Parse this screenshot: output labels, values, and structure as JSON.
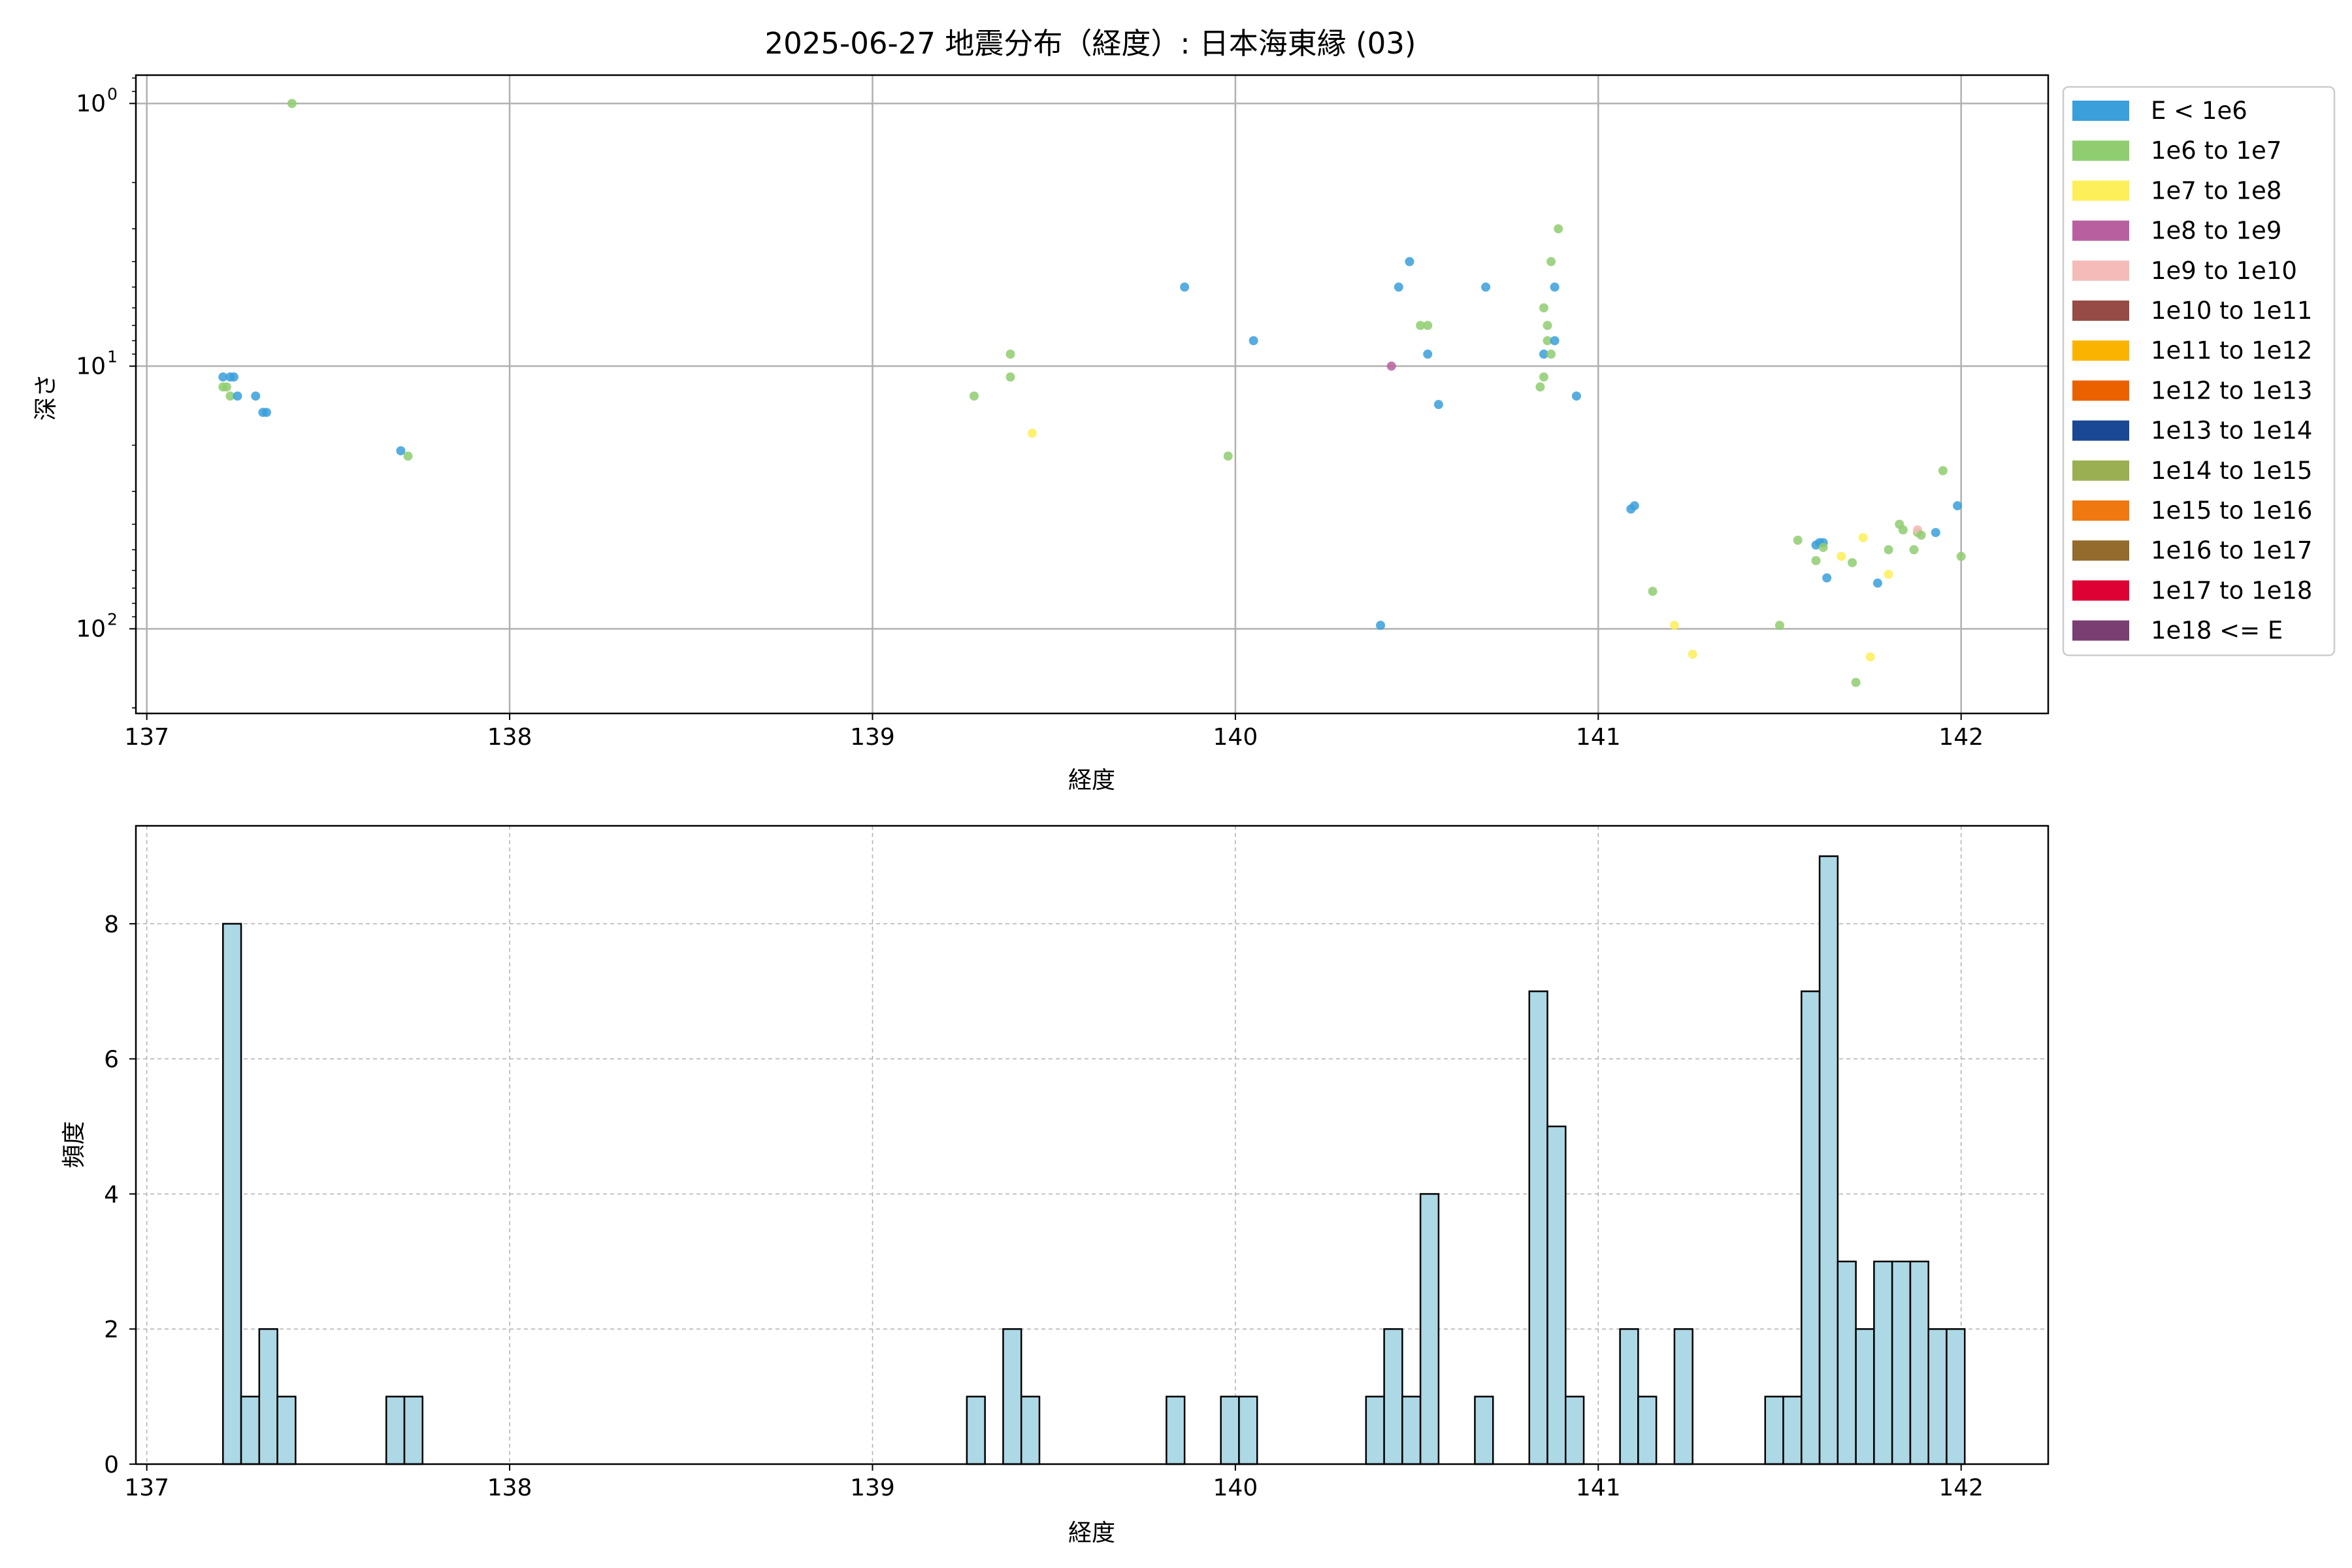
{
  "figure": {
    "title": "2025-06-27 地震分布（経度）: 日本海東縁 (03)"
  },
  "colors": {
    "grid": "#b0b0b0",
    "hist_fill": "#add8e6",
    "hist_edge": "#000000"
  },
  "chart_data": [
    {
      "type": "scatter",
      "title": "2025-06-27 地震分布（経度）: 日本海東縁 (03)",
      "xlabel": "経度",
      "ylabel": "深さ",
      "xlim": [
        136.97,
        142.24
      ],
      "ylim": [
        0.78,
        210
      ],
      "y_scale": "log",
      "y_inverted": true,
      "grid": true,
      "x_ticks": [
        137,
        138,
        139,
        140,
        141,
        142
      ],
      "y_ticks": [
        {
          "value": 1,
          "base": "10",
          "exp": "0"
        },
        {
          "value": 10,
          "base": "10",
          "exp": "1"
        },
        {
          "value": 100,
          "base": "10",
          "exp": "2"
        }
      ],
      "legend_position": "outside-right",
      "legend": [
        {
          "label": "E < 1e6",
          "color": "#3a9fdb"
        },
        {
          "label": "1e6 to 1e7",
          "color": "#8fcd70"
        },
        {
          "label": "1e7 to 1e8",
          "color": "#fdef59"
        },
        {
          "label": "1e8 to 1e9",
          "color": "#b8609f"
        },
        {
          "label": "1e9 to 1e10",
          "color": "#f4bbb8"
        },
        {
          "label": "1e10 to 1e11",
          "color": "#964b47"
        },
        {
          "label": "1e11 to 1e12",
          "color": "#f8b400"
        },
        {
          "label": "1e12 to 1e13",
          "color": "#ea6100"
        },
        {
          "label": "1e13 to 1e14",
          "color": "#1a4894"
        },
        {
          "label": "1e14 to 1e15",
          "color": "#9aaf51"
        },
        {
          "label": "1e15 to 1e16",
          "color": "#ef7910"
        },
        {
          "label": "1e16 to 1e17",
          "color": "#956a2d"
        },
        {
          "label": "1e17 to 1e18",
          "color": "#dd0134"
        },
        {
          "label": "1e18 <= E",
          "color": "#7b3e72"
        }
      ],
      "points": [
        {
          "x": 137.21,
          "y": 11,
          "c": 0
        },
        {
          "x": 137.23,
          "y": 11,
          "c": 0
        },
        {
          "x": 137.24,
          "y": 11,
          "c": 0
        },
        {
          "x": 137.21,
          "y": 12,
          "c": 1
        },
        {
          "x": 137.22,
          "y": 12,
          "c": 1
        },
        {
          "x": 137.23,
          "y": 13,
          "c": 1
        },
        {
          "x": 137.25,
          "y": 13,
          "c": 0
        },
        {
          "x": 137.3,
          "y": 13,
          "c": 0
        },
        {
          "x": 137.32,
          "y": 15,
          "c": 0
        },
        {
          "x": 137.33,
          "y": 15,
          "c": 0
        },
        {
          "x": 137.4,
          "y": 1,
          "c": 1
        },
        {
          "x": 137.7,
          "y": 21,
          "c": 0
        },
        {
          "x": 137.72,
          "y": 22,
          "c": 1
        },
        {
          "x": 139.28,
          "y": 13,
          "c": 1
        },
        {
          "x": 139.38,
          "y": 9,
          "c": 1
        },
        {
          "x": 139.38,
          "y": 11,
          "c": 1
        },
        {
          "x": 139.44,
          "y": 18,
          "c": 2
        },
        {
          "x": 139.86,
          "y": 5,
          "c": 0
        },
        {
          "x": 139.98,
          "y": 22,
          "c": 1
        },
        {
          "x": 140.05,
          "y": 8,
          "c": 0
        },
        {
          "x": 140.4,
          "y": 97,
          "c": 0
        },
        {
          "x": 140.43,
          "y": 10,
          "c": 3
        },
        {
          "x": 140.45,
          "y": 5,
          "c": 0
        },
        {
          "x": 140.48,
          "y": 4,
          "c": 0
        },
        {
          "x": 140.51,
          "y": 7,
          "c": 1
        },
        {
          "x": 140.53,
          "y": 7,
          "c": 1
        },
        {
          "x": 140.53,
          "y": 9,
          "c": 0
        },
        {
          "x": 140.56,
          "y": 14,
          "c": 0
        },
        {
          "x": 140.69,
          "y": 5,
          "c": 0
        },
        {
          "x": 140.84,
          "y": 12,
          "c": 1
        },
        {
          "x": 140.85,
          "y": 9,
          "c": 0
        },
        {
          "x": 140.85,
          "y": 11,
          "c": 1
        },
        {
          "x": 140.85,
          "y": 6,
          "c": 1
        },
        {
          "x": 140.86,
          "y": 7,
          "c": 1
        },
        {
          "x": 140.86,
          "y": 8,
          "c": 1
        },
        {
          "x": 140.87,
          "y": 9,
          "c": 1
        },
        {
          "x": 140.87,
          "y": 4,
          "c": 1
        },
        {
          "x": 140.88,
          "y": 5,
          "c": 0
        },
        {
          "x": 140.88,
          "y": 8,
          "c": 0
        },
        {
          "x": 140.89,
          "y": 3,
          "c": 1
        },
        {
          "x": 140.94,
          "y": 13,
          "c": 0
        },
        {
          "x": 141.09,
          "y": 35,
          "c": 0
        },
        {
          "x": 141.1,
          "y": 34,
          "c": 0
        },
        {
          "x": 141.15,
          "y": 72,
          "c": 1
        },
        {
          "x": 141.21,
          "y": 97,
          "c": 2
        },
        {
          "x": 141.26,
          "y": 125,
          "c": 2
        },
        {
          "x": 141.5,
          "y": 97,
          "c": 1
        },
        {
          "x": 141.55,
          "y": 46,
          "c": 1
        },
        {
          "x": 141.6,
          "y": 48,
          "c": 0
        },
        {
          "x": 141.6,
          "y": 55,
          "c": 1
        },
        {
          "x": 141.61,
          "y": 47,
          "c": 0
        },
        {
          "x": 141.62,
          "y": 47,
          "c": 0
        },
        {
          "x": 141.62,
          "y": 49,
          "c": 1
        },
        {
          "x": 141.63,
          "y": 64,
          "c": 0
        },
        {
          "x": 141.67,
          "y": 53,
          "c": 2
        },
        {
          "x": 141.7,
          "y": 56,
          "c": 1
        },
        {
          "x": 141.71,
          "y": 160,
          "c": 1
        },
        {
          "x": 141.73,
          "y": 45,
          "c": 2
        },
        {
          "x": 141.75,
          "y": 128,
          "c": 2
        },
        {
          "x": 141.77,
          "y": 67,
          "c": 0
        },
        {
          "x": 141.8,
          "y": 62,
          "c": 2
        },
        {
          "x": 141.8,
          "y": 50,
          "c": 1
        },
        {
          "x": 141.83,
          "y": 40,
          "c": 1
        },
        {
          "x": 141.84,
          "y": 42,
          "c": 1
        },
        {
          "x": 141.87,
          "y": 50,
          "c": 1
        },
        {
          "x": 141.88,
          "y": 43,
          "c": 1
        },
        {
          "x": 141.88,
          "y": 42,
          "c": 4
        },
        {
          "x": 141.89,
          "y": 44,
          "c": 1
        },
        {
          "x": 141.93,
          "y": 43,
          "c": 0
        },
        {
          "x": 141.95,
          "y": 25,
          "c": 1
        },
        {
          "x": 141.99,
          "y": 34,
          "c": 0
        },
        {
          "x": 142.0,
          "y": 53,
          "c": 1
        }
      ]
    },
    {
      "type": "bar",
      "xlabel": "経度",
      "ylabel": "頻度",
      "xlim": [
        136.97,
        142.24
      ],
      "ylim": [
        0,
        9.45
      ],
      "grid": true,
      "x_ticks": [
        137,
        138,
        139,
        140,
        141,
        142
      ],
      "y_ticks": [
        0,
        2,
        4,
        6,
        8
      ],
      "bin_width": 0.05,
      "bins": [
        {
          "x0": 137.21,
          "count": 8
        },
        {
          "x0": 137.26,
          "count": 1
        },
        {
          "x0": 137.31,
          "count": 2
        },
        {
          "x0": 137.36,
          "count": 1
        },
        {
          "x0": 137.66,
          "count": 1
        },
        {
          "x0": 137.71,
          "count": 1
        },
        {
          "x0": 139.26,
          "count": 1
        },
        {
          "x0": 139.36,
          "count": 2
        },
        {
          "x0": 139.41,
          "count": 1
        },
        {
          "x0": 139.81,
          "count": 1
        },
        {
          "x0": 139.96,
          "count": 1
        },
        {
          "x0": 140.01,
          "count": 1
        },
        {
          "x0": 140.36,
          "count": 1
        },
        {
          "x0": 140.41,
          "count": 2
        },
        {
          "x0": 140.46,
          "count": 1
        },
        {
          "x0": 140.51,
          "count": 4
        },
        {
          "x0": 140.66,
          "count": 1
        },
        {
          "x0": 140.81,
          "count": 7
        },
        {
          "x0": 140.86,
          "count": 5
        },
        {
          "x0": 140.91,
          "count": 1
        },
        {
          "x0": 141.06,
          "count": 2
        },
        {
          "x0": 141.11,
          "count": 1
        },
        {
          "x0": 141.21,
          "count": 2
        },
        {
          "x0": 141.46,
          "count": 1
        },
        {
          "x0": 141.51,
          "count": 1
        },
        {
          "x0": 141.56,
          "count": 7
        },
        {
          "x0": 141.61,
          "count": 9
        },
        {
          "x0": 141.66,
          "count": 3
        },
        {
          "x0": 141.71,
          "count": 2
        },
        {
          "x0": 141.76,
          "count": 3
        },
        {
          "x0": 141.81,
          "count": 3
        },
        {
          "x0": 141.86,
          "count": 3
        },
        {
          "x0": 141.91,
          "count": 2
        },
        {
          "x0": 141.96,
          "count": 2
        }
      ]
    }
  ]
}
